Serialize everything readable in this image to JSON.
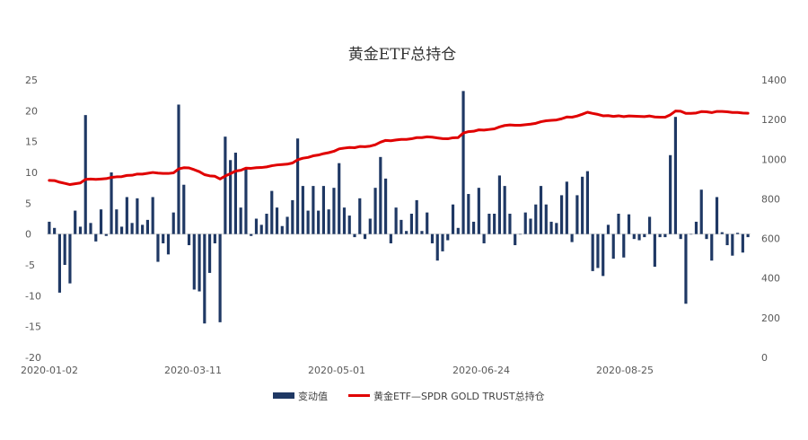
{
  "chart_data": {
    "type": "bar+line",
    "title": "黄金ETF总持仓",
    "xlabel": "",
    "ylabel_left": "",
    "ylabel_right": "",
    "x_tick_labels": [
      "2020-01-02",
      "2020-03-11",
      "2020-05-01",
      "2020-06-24",
      "2020-08-25"
    ],
    "y_left": {
      "min": -20,
      "max": 25,
      "ticks": [
        -20,
        -15,
        -10,
        -5,
        0,
        5,
        10,
        15,
        20,
        25
      ]
    },
    "y_right": {
      "min": 0,
      "max": 1400,
      "ticks": [
        0,
        200,
        400,
        600,
        800,
        1000,
        1200,
        1400
      ]
    },
    "legend_position": "bottom",
    "grid": false,
    "series": [
      {
        "name": "变动值",
        "type": "bar",
        "axis": "left",
        "color": "#1f3864",
        "values": [
          2,
          1,
          -9.5,
          -5,
          -8,
          3.8,
          1.2,
          19.3,
          1.8,
          -1.2,
          4,
          -0.3,
          10,
          4,
          1.2,
          6,
          1.8,
          5.8,
          1.5,
          2.3,
          6,
          -4.5,
          -1.5,
          -3.3,
          3.5,
          21,
          8,
          -1.8,
          -9,
          -9.3,
          -14.5,
          -6.3,
          -1.5,
          -14.3,
          15.8,
          12,
          13.2,
          4.3,
          10.8,
          -0.3,
          2.5,
          1.5,
          3.3,
          7,
          4.3,
          1.3,
          2.8,
          5.5,
          15.5,
          7.8,
          3.8,
          7.8,
          3.8,
          7.8,
          4,
          7.5,
          11.5,
          4.3,
          3,
          -0.5,
          5.8,
          -0.8,
          2.5,
          7.5,
          12.5,
          9,
          -1.5,
          4.3,
          2.3,
          0.5,
          3.3,
          5.5,
          0.5,
          3.5,
          -1.5,
          -4.3,
          -2.8,
          -1,
          4.8,
          1,
          23.2,
          6.5,
          2,
          7.5,
          -1.5,
          3.3,
          3.3,
          9.5,
          7.8,
          3.3,
          -1.8,
          0,
          3.5,
          2.5,
          4.8,
          7.8,
          4.8,
          2,
          1.8,
          6.3,
          8.5,
          -1.3,
          6.3,
          9.3,
          10.2,
          -6,
          -5.5,
          -6.8,
          1.5,
          -4,
          3.3,
          -3.8,
          3.2,
          -0.8,
          -1,
          -0.5,
          2.8,
          -5.3,
          -0.5,
          -0.5,
          12.8,
          19,
          -0.8,
          -11.3,
          0,
          2,
          7.2,
          -0.8,
          -4.3,
          6,
          0.3,
          -1.8,
          -3.5,
          0.2,
          -3,
          -0.5
        ]
      },
      {
        "name": "黄金ETF—SPDR GOLD TRUST总持仓",
        "type": "line",
        "axis": "right",
        "color": "#e00000",
        "values": [
          893,
          892,
          884,
          878,
          872,
          876,
          880,
          898,
          900,
          898,
          900,
          902,
          908,
          911,
          912,
          918,
          919,
          925,
          925,
          929,
          933,
          930,
          928,
          928,
          931,
          951,
          957,
          956,
          947,
          937,
          922,
          916,
          914,
          900,
          915,
          927,
          940,
          944,
          955,
          954,
          957,
          958,
          961,
          967,
          971,
          973,
          975,
          981,
          997,
          1005,
          1009,
          1017,
          1021,
          1028,
          1033,
          1040,
          1052,
          1056,
          1059,
          1058,
          1064,
          1063,
          1066,
          1073,
          1086,
          1095,
          1093,
          1097,
          1100,
          1100,
          1103,
          1109,
          1109,
          1113,
          1111,
          1107,
          1104,
          1103,
          1108,
          1109,
          1132,
          1139,
          1141,
          1148,
          1147,
          1150,
          1153,
          1163,
          1170,
          1173,
          1171,
          1171,
          1174,
          1177,
          1181,
          1189,
          1194,
          1196,
          1198,
          1204,
          1213,
          1212,
          1218,
          1227,
          1237,
          1231,
          1226,
          1219,
          1220,
          1216,
          1219,
          1215,
          1218,
          1217,
          1216,
          1215,
          1218,
          1213,
          1212,
          1212,
          1224,
          1243,
          1242,
          1231,
          1231,
          1233,
          1240,
          1239,
          1235,
          1241,
          1241,
          1239,
          1236,
          1236,
          1233,
          1232
        ]
      }
    ]
  }
}
